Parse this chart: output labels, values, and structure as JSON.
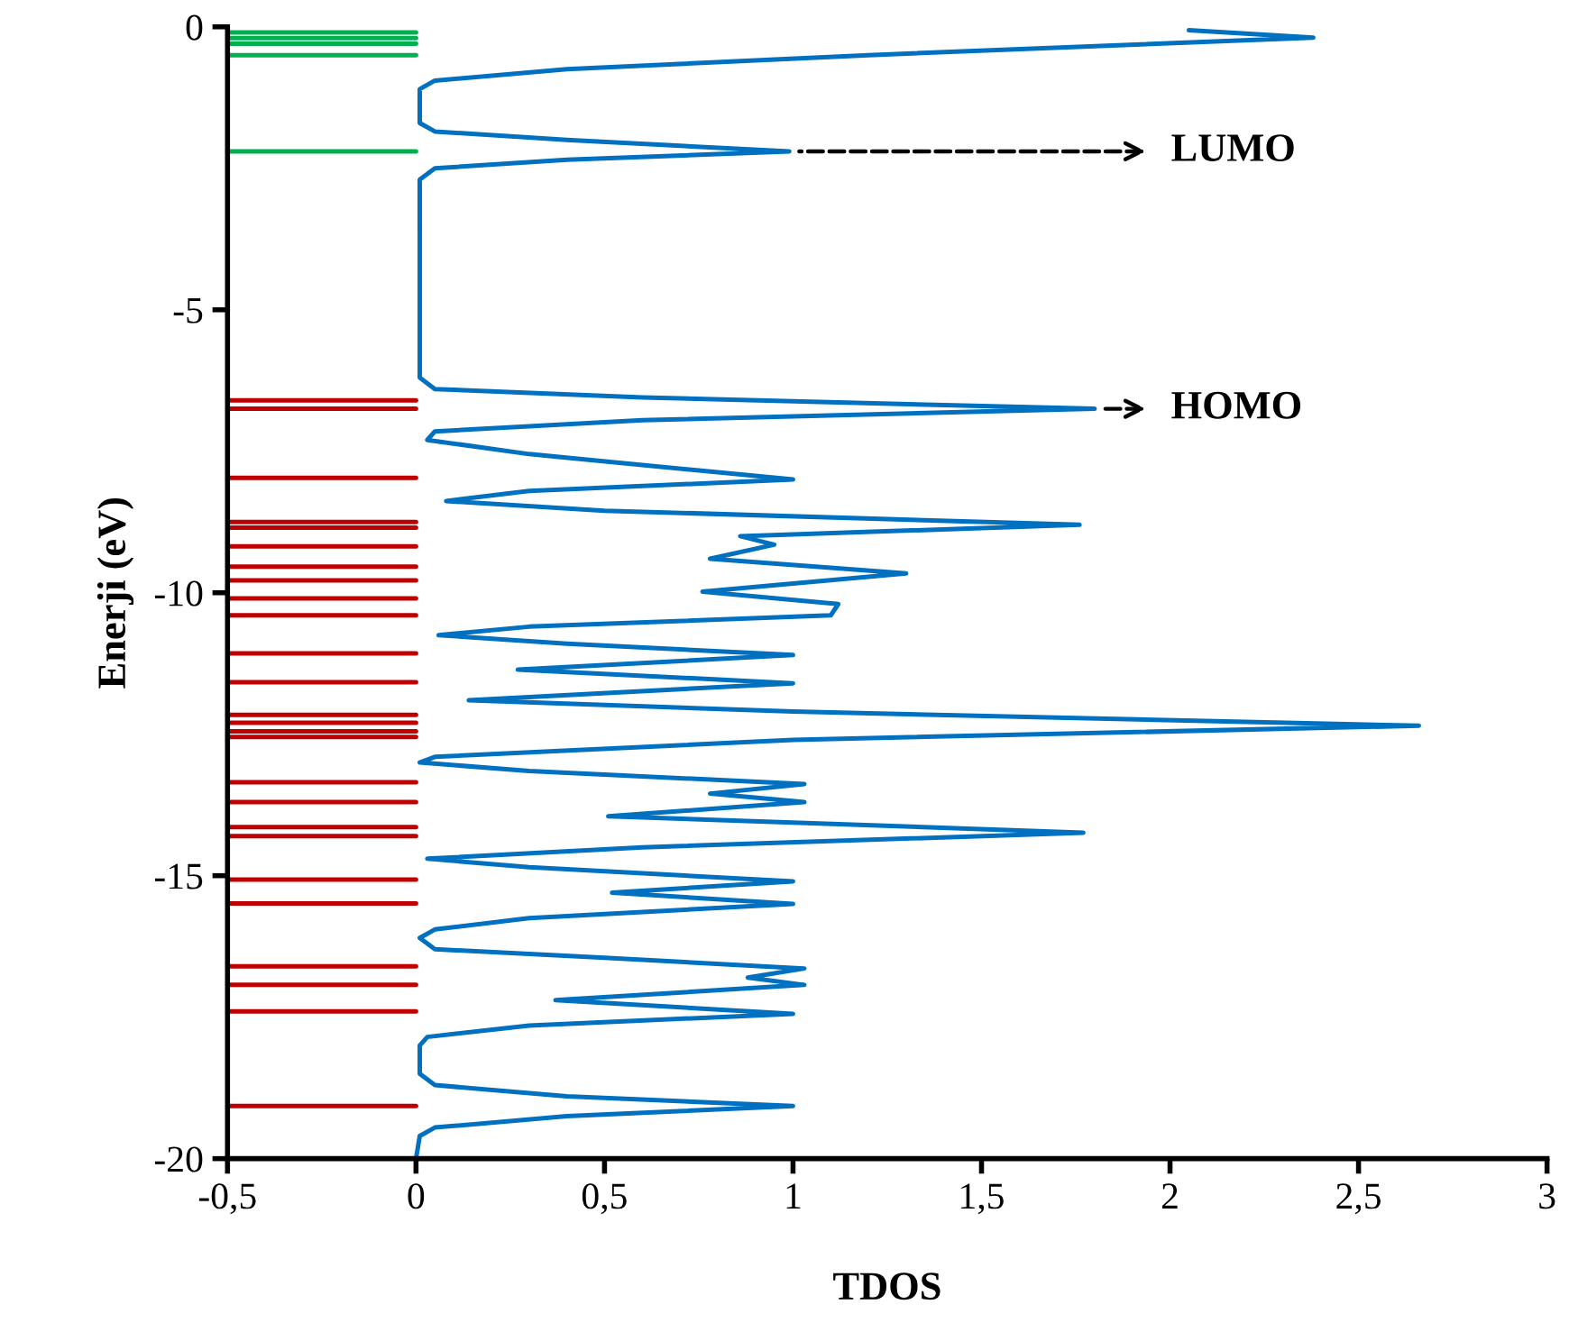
{
  "chart_data": {
    "type": "line",
    "xlabel": "TDOS",
    "ylabel": "Enerji (eV)",
    "xlim": [
      -0.5,
      3
    ],
    "xticks": [
      {
        "value": -0.5,
        "label": "-0,5"
      },
      0,
      {
        "value": 0.5,
        "label": "0,5"
      },
      1,
      {
        "value": 1.5,
        "label": "1,5"
      },
      2,
      {
        "value": 2.5,
        "label": "2,5"
      },
      3
    ],
    "ylim": [
      -20,
      0
    ],
    "yticks": [
      -20,
      -15,
      -10,
      -5,
      0
    ],
    "grid": false,
    "legend": false,
    "marker": "none",
    "line_style": "solid",
    "series": [
      {
        "color": "#00b050",
        "x": [
          -0.5,
          0
        ],
        "values": [
          -0.1,
          -0.1
        ]
      },
      {
        "color": "#00b050",
        "x": [
          -0.5,
          0
        ],
        "values": [
          -0.2,
          -0.2
        ]
      },
      {
        "color": "#00b050",
        "x": [
          -0.5,
          0
        ],
        "values": [
          -0.3,
          -0.3
        ]
      },
      {
        "color": "#00b050",
        "x": [
          -0.5,
          0
        ],
        "values": [
          -0.5,
          -0.5
        ]
      },
      {
        "color": "#00b050",
        "x": [
          -0.5,
          0
        ],
        "values": [
          -2.2,
          -2.2
        ]
      },
      {
        "color": "#c00000",
        "x": [
          -0.5,
          0
        ],
        "values": [
          -6.6,
          -6.6
        ]
      },
      {
        "color": "#c00000",
        "x": [
          -0.5,
          0
        ],
        "values": [
          -6.75,
          -6.75
        ]
      },
      {
        "color": "#c00000",
        "x": [
          -0.5,
          0
        ],
        "values": [
          -7.97,
          -7.97
        ]
      },
      {
        "color": "#c00000",
        "x": [
          -0.5,
          0
        ],
        "values": [
          -8.75,
          -8.75
        ]
      },
      {
        "color": "#c00000",
        "x": [
          -0.5,
          0
        ],
        "values": [
          -8.85,
          -8.85
        ]
      },
      {
        "color": "#c00000",
        "x": [
          -0.5,
          0
        ],
        "values": [
          -9.18,
          -9.18
        ]
      },
      {
        "color": "#c00000",
        "x": [
          -0.5,
          0
        ],
        "values": [
          -9.54,
          -9.54
        ]
      },
      {
        "color": "#c00000",
        "x": [
          -0.5,
          0
        ],
        "values": [
          -9.78,
          -9.78
        ]
      },
      {
        "color": "#c00000",
        "x": [
          -0.5,
          0
        ],
        "values": [
          -10.1,
          -10.1
        ]
      },
      {
        "color": "#c00000",
        "x": [
          -0.5,
          0
        ],
        "values": [
          -10.4,
          -10.4
        ]
      },
      {
        "color": "#c00000",
        "x": [
          -0.5,
          0
        ],
        "values": [
          -11.07,
          -11.07
        ]
      },
      {
        "color": "#c00000",
        "x": [
          -0.5,
          0
        ],
        "values": [
          -11.58,
          -11.58
        ]
      },
      {
        "color": "#c00000",
        "x": [
          -0.5,
          0
        ],
        "values": [
          -12.16,
          -12.16
        ]
      },
      {
        "color": "#c00000",
        "x": [
          -0.5,
          0
        ],
        "values": [
          -12.3,
          -12.3
        ]
      },
      {
        "color": "#c00000",
        "x": [
          -0.5,
          0
        ],
        "values": [
          -12.45,
          -12.45
        ]
      },
      {
        "color": "#c00000",
        "x": [
          -0.5,
          0
        ],
        "values": [
          -12.55,
          -12.55
        ]
      },
      {
        "color": "#c00000",
        "x": [
          -0.5,
          0
        ],
        "values": [
          -13.35,
          -13.35
        ]
      },
      {
        "color": "#c00000",
        "x": [
          -0.5,
          0
        ],
        "values": [
          -13.7,
          -13.7
        ]
      },
      {
        "color": "#c00000",
        "x": [
          -0.5,
          0
        ],
        "values": [
          -14.14,
          -14.14
        ]
      },
      {
        "color": "#c00000",
        "x": [
          -0.5,
          0
        ],
        "values": [
          -14.3,
          -14.3
        ]
      },
      {
        "color": "#c00000",
        "x": [
          -0.5,
          0
        ],
        "values": [
          -15.07,
          -15.07
        ]
      },
      {
        "color": "#c00000",
        "x": [
          -0.5,
          0
        ],
        "values": [
          -15.49,
          -15.49
        ]
      },
      {
        "color": "#c00000",
        "x": [
          -0.5,
          0
        ],
        "values": [
          -16.6,
          -16.6
        ]
      },
      {
        "color": "#c00000",
        "x": [
          -0.5,
          0
        ],
        "values": [
          -16.93,
          -16.93
        ]
      },
      {
        "color": "#c00000",
        "x": [
          -0.5,
          0
        ],
        "values": [
          -17.4,
          -17.4
        ]
      },
      {
        "color": "#c00000",
        "x": [
          -0.5,
          0
        ],
        "values": [
          -19.07,
          -19.07
        ]
      },
      {
        "color": "#0070c0",
        "x": [
          2.05,
          2.38,
          1.2,
          0.4,
          0.05,
          0.01,
          0.01,
          0.05,
          0.4,
          0.99,
          0.4,
          0.05,
          0.01,
          0.01,
          0.05,
          0.6,
          1.8,
          0.6,
          0.05,
          0.03,
          0.3,
          1.0,
          0.3,
          0.08,
          0.5,
          1.76,
          0.86,
          0.95,
          0.78,
          1.3,
          0.76,
          1.12,
          1.1,
          0.3,
          0.06,
          0.4,
          1.0,
          0.27,
          1.0,
          0.14,
          1.0,
          2.66,
          1.0,
          0.05,
          0.01,
          0.3,
          1.03,
          0.78,
          1.03,
          0.51,
          1.77,
          0.6,
          0.03,
          0.3,
          1.0,
          0.52,
          1.0,
          0.3,
          0.05,
          0.01,
          0.05,
          0.5,
          1.03,
          0.88,
          1.03,
          0.37,
          1.0,
          0.3,
          0.03,
          0.01,
          0.01,
          0.05,
          0.4,
          1.0,
          0.4,
          0.05,
          0.01,
          0.0
        ],
        "values": [
          -0.06,
          -0.19,
          -0.5,
          -0.75,
          -0.95,
          -1.1,
          -1.7,
          -1.85,
          -2.0,
          -2.2,
          -2.35,
          -2.5,
          -2.7,
          -6.2,
          -6.4,
          -6.55,
          -6.75,
          -6.95,
          -7.15,
          -7.3,
          -7.55,
          -8.0,
          -8.2,
          -8.38,
          -8.55,
          -8.8,
          -9.0,
          -9.15,
          -9.4,
          -9.66,
          -9.98,
          -10.2,
          -10.4,
          -10.6,
          -10.75,
          -10.9,
          -11.1,
          -11.36,
          -11.6,
          -11.9,
          -12.1,
          -12.35,
          -12.6,
          -12.9,
          -13.0,
          -13.15,
          -13.38,
          -13.55,
          -13.7,
          -13.95,
          -14.24,
          -14.5,
          -14.7,
          -14.85,
          -15.1,
          -15.3,
          -15.5,
          -15.75,
          -15.95,
          -16.1,
          -16.3,
          -16.45,
          -16.64,
          -16.8,
          -16.93,
          -17.2,
          -17.44,
          -17.65,
          -17.85,
          -18.0,
          -18.5,
          -18.7,
          -18.9,
          -19.07,
          -19.25,
          -19.45,
          -19.6,
          -20
        ]
      }
    ],
    "annotations": [
      {
        "text": "LUMO",
        "x": 0.99,
        "y": -2.2
      },
      {
        "text": "HOMO",
        "x": 1.8,
        "y": -6.75
      }
    ]
  }
}
